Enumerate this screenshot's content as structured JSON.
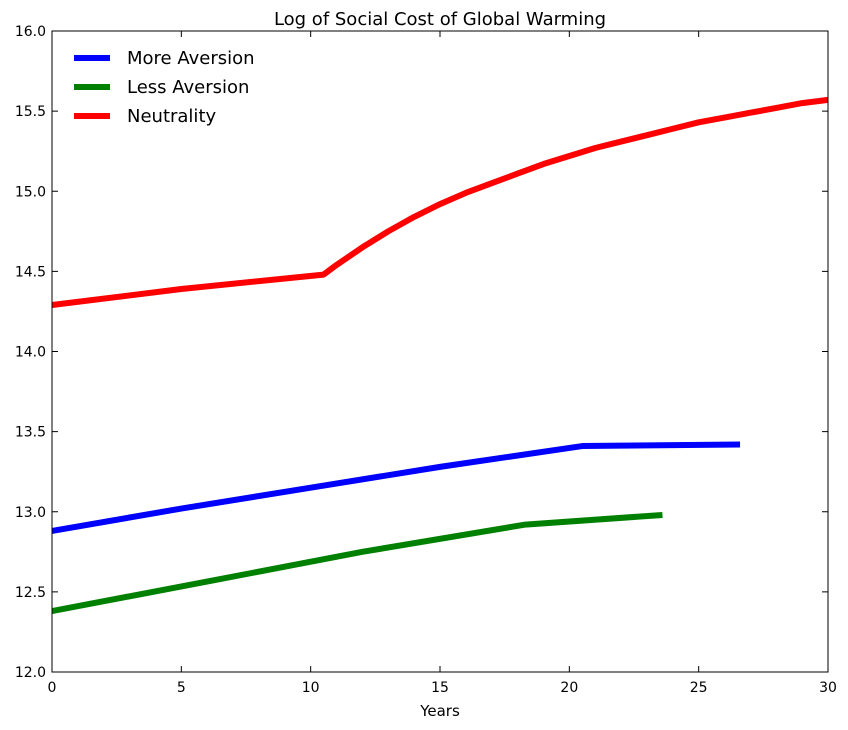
{
  "chart_data": {
    "type": "line",
    "title": "Log of Social Cost of Global Warming",
    "xlabel": "Years",
    "ylabel": "",
    "xlim": [
      0,
      30
    ],
    "ylim": [
      12.0,
      16.0
    ],
    "x_ticks": [
      0,
      5,
      10,
      15,
      20,
      25,
      30
    ],
    "y_ticks": [
      12.0,
      12.5,
      13.0,
      13.5,
      14.0,
      14.5,
      15.0,
      15.5,
      16.0
    ],
    "x_tick_labels": [
      "0",
      "5",
      "10",
      "15",
      "20",
      "25",
      "30"
    ],
    "y_tick_labels": [
      "12.0",
      "12.5",
      "13.0",
      "13.5",
      "14.0",
      "14.5",
      "15.0",
      "15.5",
      "16.0"
    ],
    "grid": false,
    "legend_position": "top-left",
    "series": [
      {
        "name": "More Aversion",
        "color": "#0000ff",
        "x": [
          0,
          5,
          10,
          15,
          20.5,
          26.6
        ],
        "y": [
          12.88,
          13.02,
          13.15,
          13.28,
          13.41,
          13.42
        ]
      },
      {
        "name": "Less Aversion",
        "color": "#008000",
        "x": [
          0,
          6.5,
          12,
          18.3,
          23.6
        ],
        "y": [
          12.38,
          12.58,
          12.75,
          12.92,
          12.98
        ]
      },
      {
        "name": "Neutrality",
        "color": "#ff0000",
        "x": [
          0,
          5,
          10.5,
          11,
          12,
          13,
          14,
          15,
          16,
          17,
          18,
          19,
          20,
          21,
          22,
          23,
          24,
          25,
          26,
          27,
          28,
          29,
          30
        ],
        "y": [
          14.29,
          14.39,
          14.48,
          14.54,
          14.65,
          14.75,
          14.84,
          14.92,
          14.99,
          15.05,
          15.11,
          15.17,
          15.22,
          15.27,
          15.31,
          15.35,
          15.39,
          15.43,
          15.46,
          15.49,
          15.52,
          15.55,
          15.57
        ]
      }
    ]
  }
}
